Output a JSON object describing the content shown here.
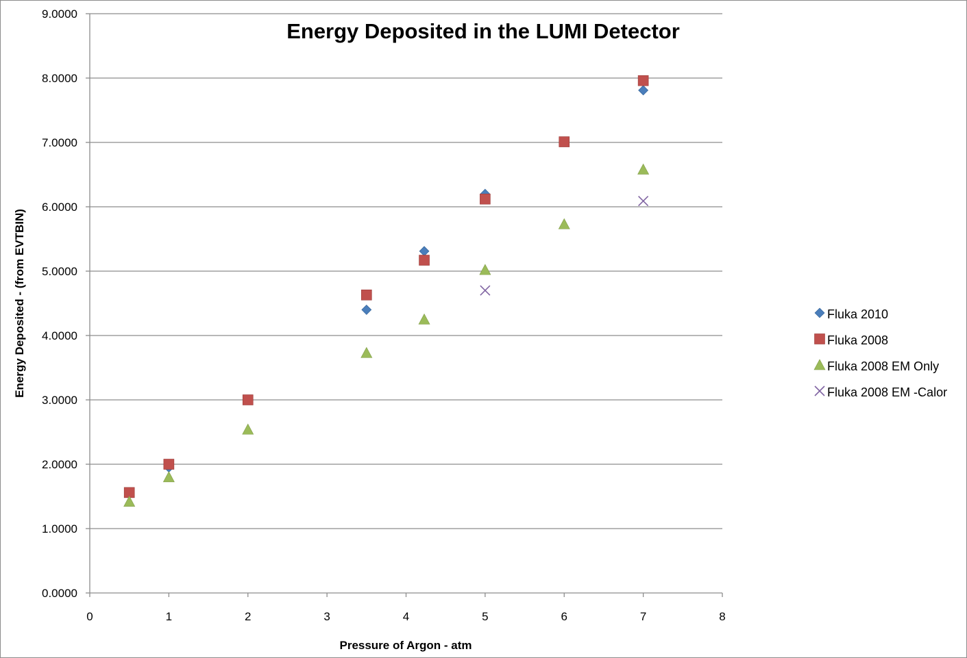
{
  "chart_data": {
    "type": "scatter",
    "title": "Energy Deposited in the LUMI Detector",
    "xlabel": "Pressure of Argon - atm",
    "ylabel": "Energy Deposited - (from EVTBIN)",
    "xlim": [
      0,
      8
    ],
    "ylim": [
      0,
      9
    ],
    "x_ticks": [
      "0",
      "1",
      "2",
      "3",
      "4",
      "5",
      "6",
      "7",
      "8"
    ],
    "y_ticks": [
      "0.0000",
      "1.0000",
      "2.0000",
      "3.0000",
      "4.0000",
      "5.0000",
      "6.0000",
      "7.0000",
      "8.0000",
      "9.0000"
    ],
    "grid": "horizontal",
    "legend_position": "right",
    "series": [
      {
        "name": "Fluka 2010",
        "marker": "diamond",
        "color": "#4a7ebb",
        "points": [
          [
            0.5,
            1.55
          ],
          [
            1,
            1.95
          ],
          [
            2,
            3.0
          ],
          [
            3.5,
            4.4
          ],
          [
            4.23,
            5.31
          ],
          [
            5,
            6.2
          ],
          [
            6,
            7.01
          ],
          [
            7,
            7.81
          ]
        ]
      },
      {
        "name": "Fluka 2008",
        "marker": "square",
        "color": "#c0504d",
        "points": [
          [
            0.5,
            1.56
          ],
          [
            1,
            2.0
          ],
          [
            2,
            3.0
          ],
          [
            3.5,
            4.63
          ],
          [
            4.23,
            5.17
          ],
          [
            5,
            6.12
          ],
          [
            6,
            7.01
          ],
          [
            7,
            7.96
          ]
        ]
      },
      {
        "name": "Fluka 2008 EM Only",
        "marker": "triangle",
        "color": "#9bbb59",
        "points": [
          [
            0.5,
            1.42
          ],
          [
            1,
            1.8
          ],
          [
            2,
            2.54
          ],
          [
            3.5,
            3.73
          ],
          [
            4.23,
            4.25
          ],
          [
            5,
            5.02
          ],
          [
            6,
            5.73
          ],
          [
            7,
            6.58
          ]
        ]
      },
      {
        "name": "Fluka 2008 EM -Calor",
        "marker": "x",
        "color": "#8064a2",
        "points": [
          [
            5,
            4.7
          ],
          [
            7,
            6.09
          ]
        ]
      }
    ]
  }
}
